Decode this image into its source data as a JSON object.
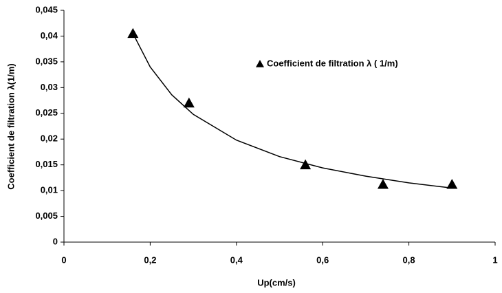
{
  "chart_data": {
    "type": "scatter",
    "x_label": "Up(cm/s)",
    "y_label": "Coefficient de filtration λ(1/m)",
    "xlim": [
      0,
      1
    ],
    "xticks": [
      0,
      {
        "value": 0.2,
        "label": "0,2"
      },
      {
        "value": 0.4,
        "label": "0,4"
      },
      {
        "value": 0.6,
        "label": "0,6"
      },
      {
        "value": 0.8,
        "label": "0,8"
      },
      1
    ],
    "ylim": [
      0,
      0.045
    ],
    "yticks": [
      0,
      {
        "value": 0.005,
        "label": "0,005"
      },
      {
        "value": 0.01,
        "label": "0,01"
      },
      {
        "value": 0.015,
        "label": "0,015"
      },
      {
        "value": 0.02,
        "label": "0,02"
      },
      {
        "value": 0.025,
        "label": "0,025"
      },
      {
        "value": 0.03,
        "label": "0,03"
      },
      {
        "value": 0.035,
        "label": "0,035"
      },
      {
        "value": 0.04,
        "label": "0,04"
      },
      {
        "value": 0.045,
        "label": "0,045"
      }
    ],
    "grid": false,
    "series": [
      {
        "name": "Coefficient de filtration λ ( 1/m)",
        "color": "#000000",
        "marker": "triangle",
        "x": [
          0.16,
          0.29,
          0.56,
          0.74,
          0.9
        ],
        "values": [
          0.0405,
          0.027,
          0.015,
          0.0112,
          0.0112
        ]
      },
      {
        "type": "line",
        "color": "#000000",
        "x": [
          0.16,
          0.2,
          0.25,
          0.3,
          0.4,
          0.5,
          0.6,
          0.7,
          0.8,
          0.9
        ],
        "values": [
          0.0405,
          0.034,
          0.0286,
          0.0248,
          0.0198,
          0.0166,
          0.0144,
          0.0128,
          0.0115,
          0.0105
        ]
      }
    ]
  }
}
